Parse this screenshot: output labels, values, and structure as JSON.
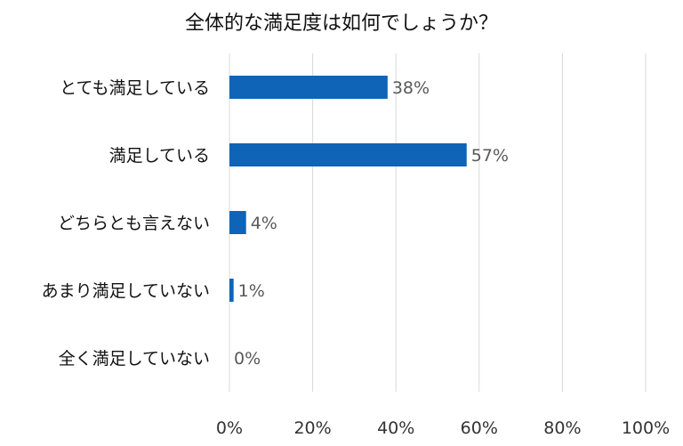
{
  "chart_data": {
    "type": "bar",
    "orientation": "horizontal",
    "title": "全体的な満足度は如何でしょうか？",
    "categories": [
      "とても満足している",
      "満足している",
      "どちらとも言えない",
      "あまり満足していない",
      "全く満足していない"
    ],
    "values": [
      38,
      57,
      4,
      1,
      0
    ],
    "value_labels": [
      "38%",
      "57%",
      "4%",
      "1%",
      "0%"
    ],
    "xlim": [
      0,
      100
    ],
    "x_ticks": [
      0,
      20,
      40,
      60,
      80,
      100
    ],
    "x_tick_labels": [
      "0%",
      "20%",
      "40%",
      "60%",
      "80%",
      "100%"
    ],
    "xlabel": "",
    "ylabel": "",
    "grid": true,
    "legend": "none",
    "bar_color": "#0F64B8"
  }
}
